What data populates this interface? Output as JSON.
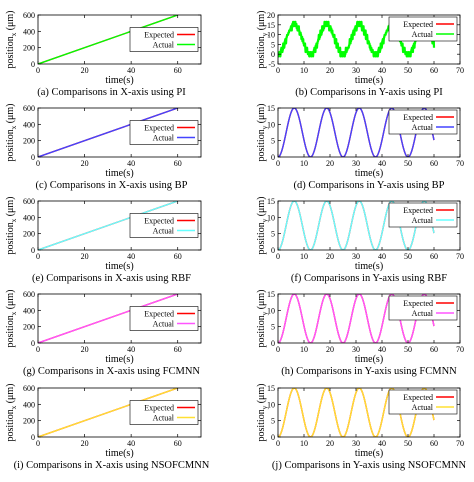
{
  "colors": {
    "expected": "#ff0000",
    "actual_pi": "#00ff00",
    "actual_bp": "#4444ff",
    "actual_rbf": "#66ffff",
    "actual_fcmnn": "#ff55ff",
    "actual_nsofcmnn": "#ffe033"
  },
  "chart_data": [
    {
      "type": "line",
      "caption": "(a) Comparisons in X-axis using PI",
      "xlabel": "time(s)",
      "ylabel": "position",
      "ylabel_sub": "x",
      "ylabel_unit": "(μm)",
      "xlim": [
        0,
        70
      ],
      "ylim": [
        0,
        600
      ],
      "xticks": [
        "0",
        "20",
        "40",
        "60"
      ],
      "yticks": [
        "0",
        "200",
        "400",
        "600"
      ],
      "legend": [
        "Expected",
        "Actual"
      ],
      "legend_position": "right",
      "series": [
        {
          "name": "Expected",
          "color": "#ff0000",
          "x": [
            0,
            60
          ],
          "y": [
            0,
            600
          ]
        },
        {
          "name": "Actual",
          "color": "#00ff00",
          "x": [
            0,
            60
          ],
          "y": [
            0,
            600
          ]
        }
      ]
    },
    {
      "type": "line",
      "caption": "(b) Comparisons in Y-axis using PI",
      "xlabel": "time(s)",
      "ylabel": "position",
      "ylabel_sub": "y",
      "ylabel_unit": "(μm)",
      "xlim": [
        0,
        70
      ],
      "ylim": [
        -5,
        20
      ],
      "xticks": [
        "0",
        "10",
        "20",
        "30",
        "40",
        "50",
        "60",
        "70"
      ],
      "yticks": [
        "-5",
        "0",
        "5",
        "10",
        "15",
        "20"
      ],
      "legend": [
        "Expected",
        "Actual"
      ],
      "legend_position": "top-right",
      "series": [
        {
          "name": "Expected",
          "color": "#ff0000",
          "formula": "7.5-7.5*cos(2*pi*t/12.5)",
          "x_range": [
            0,
            60
          ]
        },
        {
          "name": "Actual",
          "color": "#00ff00",
          "formula": "staircase noisy tracking of sinusoid",
          "x_range": [
            0,
            60
          ]
        }
      ]
    },
    {
      "type": "line",
      "caption": "(c) Comparisons in X-axis using BP",
      "xlabel": "time(s)",
      "ylabel": "position",
      "ylabel_sub": "x",
      "ylabel_unit": "(μm)",
      "xlim": [
        0,
        70
      ],
      "ylim": [
        0,
        600
      ],
      "xticks": [
        "0",
        "20",
        "40",
        "60"
      ],
      "yticks": [
        "0",
        "200",
        "400",
        "600"
      ],
      "legend": [
        "Expected",
        "Actual"
      ],
      "legend_position": "right",
      "series": [
        {
          "name": "Expected",
          "color": "#ff0000",
          "x": [
            0,
            60
          ],
          "y": [
            0,
            600
          ]
        },
        {
          "name": "Actual",
          "color": "#4444ff",
          "x": [
            0,
            60
          ],
          "y": [
            0,
            600
          ]
        }
      ]
    },
    {
      "type": "line",
      "caption": "(d) Comparisons in Y-axis using BP",
      "xlabel": "time(s)",
      "ylabel": "position",
      "ylabel_sub": "y",
      "ylabel_unit": "(μm)",
      "xlim": [
        0,
        70
      ],
      "ylim": [
        0,
        15
      ],
      "xticks": [
        "0",
        "10",
        "20",
        "30",
        "40",
        "50",
        "60",
        "70"
      ],
      "yticks": [
        "0",
        "5",
        "10",
        "15"
      ],
      "legend": [
        "Expected",
        "Actual"
      ],
      "legend_position": "top-right",
      "series": [
        {
          "name": "Expected",
          "color": "#ff0000",
          "formula": "7.5-7.5*cos(2*pi*t/12.5)",
          "x_range": [
            0,
            60
          ]
        },
        {
          "name": "Actual",
          "color": "#4444ff",
          "formula": "7.5-7.5*cos(2*pi*t/12.5)",
          "x_range": [
            0,
            60
          ]
        }
      ]
    },
    {
      "type": "line",
      "caption": "(e) Comparisons in X-axis using RBF",
      "xlabel": "time(s)",
      "ylabel": "position",
      "ylabel_sub": "x",
      "ylabel_unit": "(μm)",
      "xlim": [
        0,
        70
      ],
      "ylim": [
        0,
        600
      ],
      "xticks": [
        "0",
        "20",
        "40",
        "60"
      ],
      "yticks": [
        "0",
        "200",
        "400",
        "600"
      ],
      "legend": [
        "Expected",
        "Actual"
      ],
      "legend_position": "right",
      "series": [
        {
          "name": "Expected",
          "color": "#ff0000",
          "x": [
            0,
            60
          ],
          "y": [
            0,
            600
          ]
        },
        {
          "name": "Actual",
          "color": "#66ffff",
          "x": [
            0,
            60
          ],
          "y": [
            0,
            600
          ]
        }
      ]
    },
    {
      "type": "line",
      "caption": "(f) Comparisons in Y-axis using RBF",
      "xlabel": "time(s)",
      "ylabel": "position",
      "ylabel_sub": "y",
      "ylabel_unit": "(μm)",
      "xlim": [
        0,
        70
      ],
      "ylim": [
        0,
        15
      ],
      "xticks": [
        "0",
        "10",
        "20",
        "30",
        "40",
        "50",
        "60",
        "70"
      ],
      "yticks": [
        "0",
        "5",
        "10",
        "15"
      ],
      "legend": [
        "Expected",
        "Actual"
      ],
      "legend_position": "top-right",
      "series": [
        {
          "name": "Expected",
          "color": "#ff0000",
          "formula": "7.5-7.5*cos(2*pi*t/12.5)",
          "x_range": [
            0,
            60
          ]
        },
        {
          "name": "Actual",
          "color": "#66ffff",
          "formula": "7.5-7.5*cos(2*pi*t/12.5)",
          "x_range": [
            0,
            60
          ]
        }
      ]
    },
    {
      "type": "line",
      "caption": "(g) Comparisons in X-axis using FCMNN",
      "xlabel": "time(s)",
      "ylabel": "position",
      "ylabel_sub": "x",
      "ylabel_unit": "(μm)",
      "xlim": [
        0,
        70
      ],
      "ylim": [
        0,
        600
      ],
      "xticks": [
        "0",
        "20",
        "40",
        "60"
      ],
      "yticks": [
        "0",
        "200",
        "400",
        "600"
      ],
      "legend": [
        "Expected",
        "Actual"
      ],
      "legend_position": "right",
      "series": [
        {
          "name": "Expected",
          "color": "#ff0000",
          "x": [
            0,
            60
          ],
          "y": [
            0,
            600
          ]
        },
        {
          "name": "Actual",
          "color": "#ff55ff",
          "x": [
            0,
            60
          ],
          "y": [
            0,
            600
          ]
        }
      ]
    },
    {
      "type": "line",
      "caption": "(h) Comparisons in Y-axis using FCMNN",
      "xlabel": "time(s)",
      "ylabel": "position",
      "ylabel_sub": "y",
      "ylabel_unit": "(μm)",
      "xlim": [
        0,
        70
      ],
      "ylim": [
        0,
        15
      ],
      "xticks": [
        "0",
        "10",
        "20",
        "30",
        "40",
        "50",
        "60",
        "70"
      ],
      "yticks": [
        "0",
        "5",
        "10",
        "15"
      ],
      "legend": [
        "Expected",
        "Actual"
      ],
      "legend_position": "top-right",
      "series": [
        {
          "name": "Expected",
          "color": "#ff0000",
          "formula": "7.5-7.5*cos(2*pi*t/12.5)",
          "x_range": [
            0,
            60
          ]
        },
        {
          "name": "Actual",
          "color": "#ff55ff",
          "formula": "7.5-7.5*cos(2*pi*t/12.5)",
          "x_range": [
            0,
            60
          ]
        }
      ]
    },
    {
      "type": "line",
      "caption": "(i) Comparisons in X-axis using NSOFCMNN",
      "xlabel": "time(s)",
      "ylabel": "position",
      "ylabel_sub": "x",
      "ylabel_unit": "(μm)",
      "xlim": [
        0,
        70
      ],
      "ylim": [
        0,
        600
      ],
      "xticks": [
        "0",
        "20",
        "40",
        "60"
      ],
      "yticks": [
        "0",
        "200",
        "400",
        "600"
      ],
      "legend": [
        "Expected",
        "Actual"
      ],
      "legend_position": "right",
      "series": [
        {
          "name": "Expected",
          "color": "#ff0000",
          "x": [
            0,
            60
          ],
          "y": [
            0,
            600
          ]
        },
        {
          "name": "Actual",
          "color": "#ffe033",
          "x": [
            0,
            60
          ],
          "y": [
            0,
            600
          ]
        }
      ]
    },
    {
      "type": "line",
      "caption": "(j) Comparisons in Y-axis using NSOFCMNN",
      "xlabel": "time(s)",
      "ylabel": "position",
      "ylabel_sub": "y",
      "ylabel_unit": "(μm)",
      "xlim": [
        0,
        70
      ],
      "ylim": [
        0,
        15
      ],
      "xticks": [
        "0",
        "10",
        "20",
        "30",
        "40",
        "50",
        "60",
        "70"
      ],
      "yticks": [
        "0",
        "5",
        "10",
        "15"
      ],
      "legend": [
        "Expected",
        "Actual"
      ],
      "legend_position": "top-right",
      "series": [
        {
          "name": "Expected",
          "color": "#ff0000",
          "formula": "7.5-7.5*cos(2*pi*t/12.5)",
          "x_range": [
            0,
            60
          ]
        },
        {
          "name": "Actual",
          "color": "#ffe033",
          "formula": "7.5-7.5*cos(2*pi*t/12.5)",
          "x_range": [
            0,
            60
          ]
        }
      ]
    }
  ]
}
